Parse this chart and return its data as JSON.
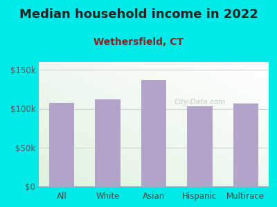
{
  "title": "Median household income in 2022",
  "subtitle": "Wethersfield, CT",
  "categories": [
    "All",
    "White",
    "Asian",
    "Hispanic",
    "Multirace"
  ],
  "values": [
    108000,
    112000,
    137000,
    103000,
    107000
  ],
  "bar_color": "#b3a3c8",
  "outer_bg": "#00eaea",
  "title_color": "#222222",
  "subtitle_color": "#8b2020",
  "ytick_labels": [
    "$0",
    "$50k",
    "$100k",
    "$150k"
  ],
  "ytick_values": [
    0,
    50000,
    100000,
    150000
  ],
  "ylim": [
    0,
    160000
  ],
  "watermark": "City-Data.com",
  "title_fontsize": 13,
  "subtitle_fontsize": 10,
  "tick_fontsize": 8.5
}
